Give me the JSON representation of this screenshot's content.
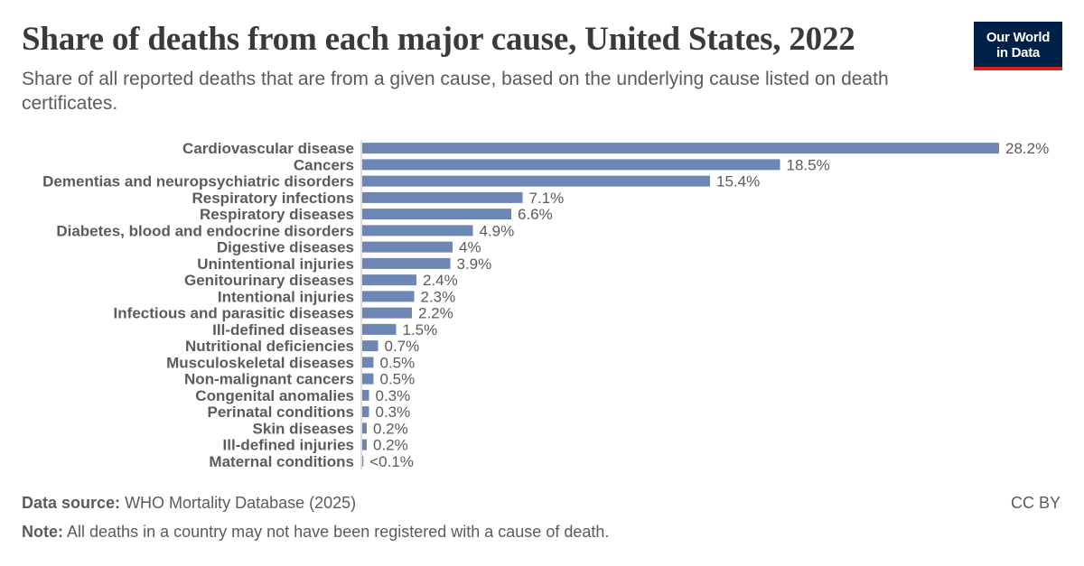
{
  "header": {
    "title": "Share of deaths from each major cause, United States, 2022",
    "subtitle": "Share of all reported deaths that are from a given cause, based on the underlying cause listed on death certificates.",
    "logo_line1": "Our World",
    "logo_line2": "in Data"
  },
  "colors": {
    "bar": "#6d86b3",
    "axis": "#bbbbbb",
    "logo_bg": "#002147",
    "logo_accent": "#ce261e"
  },
  "chart_data": {
    "type": "bar",
    "orientation": "horizontal",
    "unit": "%",
    "categories": [
      "Cardiovascular disease",
      "Cancers",
      "Dementias and neuropsychiatric disorders",
      "Respiratory infections",
      "Respiratory diseases",
      "Diabetes, blood and endocrine disorders",
      "Digestive diseases",
      "Unintentional injuries",
      "Genitourinary diseases",
      "Intentional injuries",
      "Infectious and parasitic diseases",
      "Ill-defined diseases",
      "Nutritional deficiencies",
      "Musculoskeletal diseases",
      "Non-malignant cancers",
      "Congenital anomalies",
      "Perinatal conditions",
      "Skin diseases",
      "Ill-defined injuries",
      "Maternal conditions"
    ],
    "values": [
      28.2,
      18.5,
      15.4,
      7.1,
      6.6,
      4.9,
      4,
      3.9,
      2.4,
      2.3,
      2.2,
      1.5,
      0.7,
      0.5,
      0.5,
      0.3,
      0.3,
      0.2,
      0.2,
      0.05
    ],
    "value_labels": [
      "28.2%",
      "18.5%",
      "15.4%",
      "7.1%",
      "6.6%",
      "4.9%",
      "4%",
      "3.9%",
      "2.4%",
      "2.3%",
      "2.2%",
      "1.5%",
      "0.7%",
      "0.5%",
      "0.5%",
      "0.3%",
      "0.3%",
      "0.2%",
      "0.2%",
      "<0.1%"
    ],
    "xlim": [
      0,
      28.2
    ],
    "grid": false,
    "legend": "none"
  },
  "footer": {
    "source_label": "Data source:",
    "source_text": "WHO Mortality Database (2025)",
    "note_label": "Note:",
    "note_text": "All deaths in a country may not have been registered with a cause of death.",
    "license": "CC BY"
  }
}
